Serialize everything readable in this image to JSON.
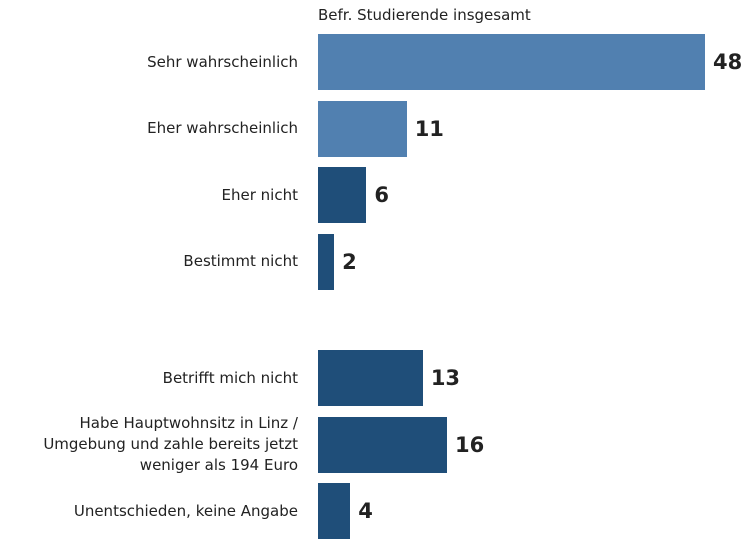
{
  "chart_data": {
    "type": "bar",
    "orientation": "horizontal",
    "subtitle": "Befr. Studierende insgesamt",
    "categories": [
      "Sehr wahrscheinlich",
      "Eher wahrscheinlich",
      "Eher nicht",
      "Bestimmt nicht",
      "Betrifft mich nicht",
      "Habe Hauptwohnsitz in Linz / Umgebung und zahle bereits jetzt weniger als 194 Euro",
      "Unentschieden, keine Angabe"
    ],
    "values": [
      48,
      11,
      6,
      2,
      13,
      16,
      4
    ],
    "colors": [
      "#5180b0",
      "#5180b0",
      "#1f4e79",
      "#1f4e79",
      "#1f4e79",
      "#1f4e79",
      "#1f4e79"
    ]
  }
}
